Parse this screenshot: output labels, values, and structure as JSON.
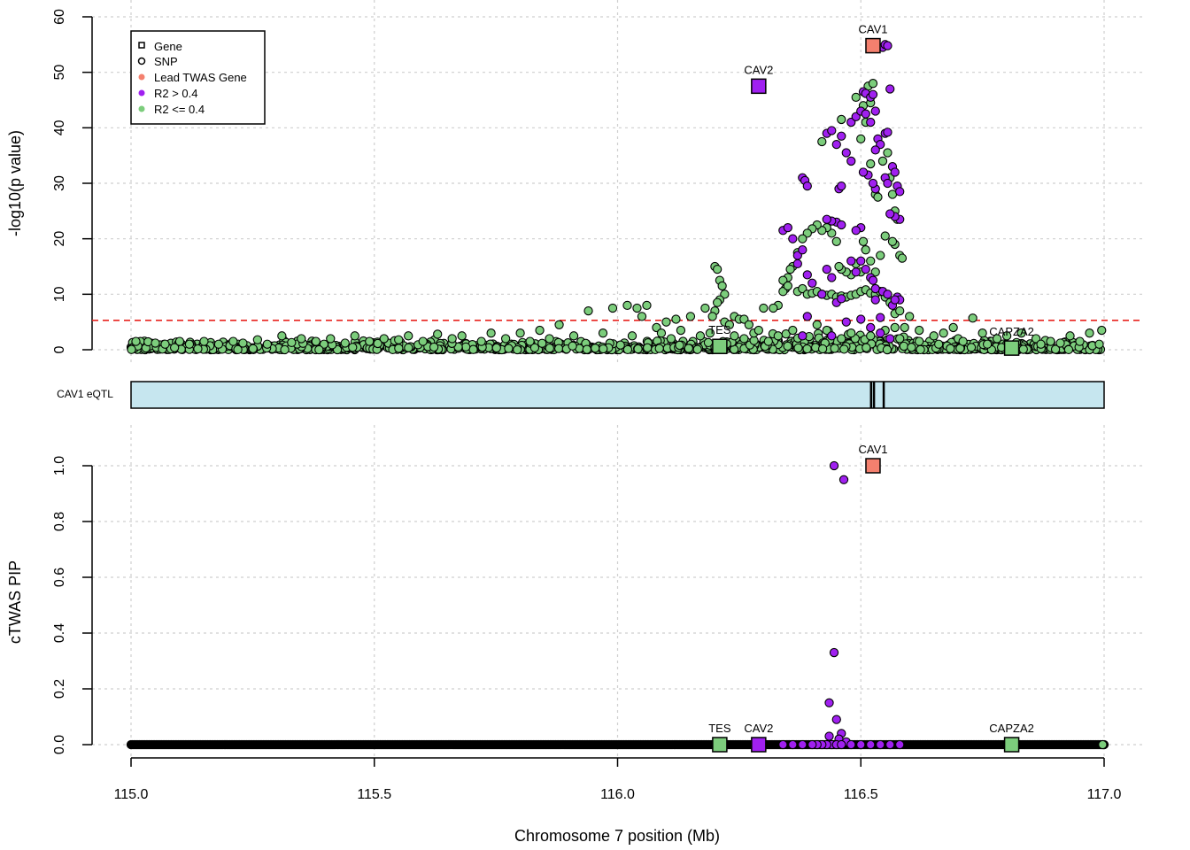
{
  "chart_data": [
    {
      "type": "scatter",
      "panel": "association",
      "ylabel": "-log10(p value)",
      "xlim": [
        115.0,
        117.0
      ],
      "ylim": [
        0,
        60
      ],
      "yticks": [
        0,
        10,
        20,
        30,
        40,
        50,
        60
      ],
      "grid": true,
      "threshold": 5.3,
      "legend_position": "top-left",
      "legend": [
        {
          "label": "Gene",
          "marker": "square-open",
          "color": "#000000"
        },
        {
          "label": "SNP",
          "marker": "circle-open",
          "color": "#000000"
        },
        {
          "label": "Lead TWAS Gene",
          "marker": "circle",
          "color": "#f4806e"
        },
        {
          "label": "R2 > 0.4",
          "marker": "circle",
          "color": "#a020f0"
        },
        {
          "label": "R2 <= 0.4",
          "marker": "circle",
          "color": "#7ccd7c"
        }
      ],
      "genes": [
        {
          "name": "CAV1",
          "x": 116.525,
          "y": 54.8,
          "class": "lead"
        },
        {
          "name": "CAV2",
          "x": 116.29,
          "y": 47.5,
          "class": "high"
        },
        {
          "name": "TES",
          "x": 116.21,
          "y": 0.6,
          "class": "low"
        },
        {
          "name": "CAPZA2",
          "x": 116.81,
          "y": 0.3,
          "class": "low"
        }
      ],
      "snps_high": [
        [
          116.34,
          21.5
        ],
        [
          116.35,
          22.0
        ],
        [
          116.36,
          20.0
        ],
        [
          116.37,
          17.0
        ],
        [
          116.37,
          15.5
        ],
        [
          116.38,
          31.0
        ],
        [
          116.385,
          30.5
        ],
        [
          116.39,
          29.5
        ],
        [
          116.38,
          18.0
        ],
        [
          116.39,
          13.5
        ],
        [
          116.4,
          12.0
        ],
        [
          116.42,
          10.0
        ],
        [
          116.43,
          14.5
        ],
        [
          116.44,
          13.0
        ],
        [
          116.45,
          23.0
        ],
        [
          116.46,
          22.5
        ],
        [
          116.44,
          23.2
        ],
        [
          116.43,
          23.5
        ],
        [
          116.43,
          39.0
        ],
        [
          116.44,
          39.5
        ],
        [
          116.45,
          37.0
        ],
        [
          116.46,
          38.5
        ],
        [
          116.47,
          35.5
        ],
        [
          116.48,
          41.0
        ],
        [
          116.49,
          42.0
        ],
        [
          116.5,
          43.0
        ],
        [
          116.505,
          46.5
        ],
        [
          116.51,
          46.2
        ],
        [
          116.52,
          45.5
        ],
        [
          116.525,
          46.0
        ],
        [
          116.51,
          42.5
        ],
        [
          116.52,
          41.0
        ],
        [
          116.53,
          43.0
        ],
        [
          116.535,
          38.0
        ],
        [
          116.54,
          37.0
        ],
        [
          116.545,
          54.5
        ],
        [
          116.55,
          55.0
        ],
        [
          116.555,
          54.8
        ],
        [
          116.56,
          47.0
        ],
        [
          116.55,
          39.0
        ],
        [
          116.555,
          39.2
        ],
        [
          116.55,
          31.0
        ],
        [
          116.555,
          30.0
        ],
        [
          116.565,
          33.0
        ],
        [
          116.57,
          32.0
        ],
        [
          116.575,
          29.5
        ],
        [
          116.58,
          28.5
        ],
        [
          116.58,
          23.5
        ],
        [
          116.57,
          24.0
        ],
        [
          116.56,
          24.5
        ],
        [
          116.53,
          29.0
        ],
        [
          116.525,
          30.0
        ],
        [
          116.515,
          31.5
        ],
        [
          116.505,
          32.0
        ],
        [
          116.5,
          22.0
        ],
        [
          116.49,
          21.5
        ],
        [
          116.48,
          16.0
        ],
        [
          116.49,
          14.0
        ],
        [
          116.5,
          16.0
        ],
        [
          116.51,
          14.5
        ],
        [
          116.52,
          13.0
        ],
        [
          116.525,
          12.5
        ],
        [
          116.53,
          11.0
        ],
        [
          116.545,
          10.5
        ],
        [
          116.555,
          10.0
        ],
        [
          116.565,
          8.0
        ],
        [
          116.575,
          9.5
        ],
        [
          116.58,
          9.0
        ],
        [
          116.54,
          3.0
        ],
        [
          116.56,
          2.0
        ],
        [
          116.44,
          2.5
        ],
        [
          116.38,
          2.5
        ],
        [
          116.45,
          8.5
        ],
        [
          116.47,
          5.0
        ],
        [
          116.5,
          5.5
        ],
        [
          116.52,
          4.0
        ],
        [
          116.455,
          29.0
        ],
        [
          116.46,
          29.5
        ],
        [
          116.48,
          34.0
        ],
        [
          116.53,
          36.0
        ],
        [
          116.54,
          5.8
        ],
        [
          116.57,
          9.0
        ],
        [
          116.53,
          9.0
        ],
        [
          116.46,
          9.2
        ],
        [
          116.39,
          6.0
        ]
      ],
      "snps_low": [
        [
          116.42,
          37.5
        ],
        [
          116.46,
          41.5
        ],
        [
          116.49,
          45.5
        ],
        [
          116.5,
          38.0
        ],
        [
          116.505,
          44.0
        ],
        [
          116.515,
          47.5
        ],
        [
          116.525,
          48.0
        ],
        [
          116.52,
          44.5
        ],
        [
          116.51,
          41.0
        ],
        [
          116.52,
          33.5
        ],
        [
          116.53,
          28.0
        ],
        [
          116.535,
          27.5
        ],
        [
          116.545,
          34.0
        ],
        [
          116.555,
          35.5
        ],
        [
          116.56,
          31.0
        ],
        [
          116.565,
          28.0
        ],
        [
          116.57,
          25.0
        ],
        [
          116.575,
          23.5
        ],
        [
          116.58,
          17.0
        ],
        [
          116.585,
          16.5
        ],
        [
          116.57,
          19.0
        ],
        [
          116.565,
          19.5
        ],
        [
          116.55,
          20.5
        ],
        [
          116.54,
          17.0
        ],
        [
          116.53,
          14.0
        ],
        [
          116.52,
          16.0
        ],
        [
          116.51,
          18.0
        ],
        [
          116.505,
          19.5
        ],
        [
          116.5,
          14.0
        ],
        [
          116.49,
          15.5
        ],
        [
          116.48,
          13.5
        ],
        [
          116.47,
          14.0
        ],
        [
          116.46,
          14.5
        ],
        [
          116.455,
          15.0
        ],
        [
          116.45,
          19.5
        ],
        [
          116.44,
          21.0
        ],
        [
          116.43,
          22.0
        ],
        [
          116.42,
          21.5
        ],
        [
          116.41,
          22.5
        ],
        [
          116.4,
          21.8
        ],
        [
          116.39,
          21.0
        ],
        [
          116.38,
          20.0
        ],
        [
          116.37,
          17.5
        ],
        [
          116.36,
          15.0
        ],
        [
          116.355,
          14.5
        ],
        [
          116.35,
          13.0
        ],
        [
          116.345,
          11.0
        ],
        [
          116.34,
          10.5
        ],
        [
          116.33,
          8.0
        ],
        [
          116.32,
          7.5
        ],
        [
          116.34,
          12.5
        ],
        [
          116.35,
          11.5
        ],
        [
          116.37,
          10.5
        ],
        [
          116.38,
          11.0
        ],
        [
          116.39,
          10.0
        ],
        [
          116.4,
          10.2
        ],
        [
          116.41,
          10.5
        ],
        [
          116.42,
          10.0
        ],
        [
          116.43,
          9.8
        ],
        [
          116.44,
          10.0
        ],
        [
          116.45,
          9.5
        ],
        [
          116.46,
          9.7
        ],
        [
          116.47,
          9.5
        ],
        [
          116.48,
          9.8
        ],
        [
          116.49,
          10.0
        ],
        [
          116.5,
          10.5
        ],
        [
          116.51,
          10.8
        ],
        [
          116.52,
          10.2
        ],
        [
          116.53,
          10.0
        ],
        [
          116.54,
          10.5
        ],
        [
          116.55,
          9.5
        ],
        [
          116.56,
          8.5
        ],
        [
          116.57,
          6.5
        ],
        [
          116.58,
          7.0
        ],
        [
          116.59,
          4.0
        ],
        [
          116.6,
          6.0
        ],
        [
          116.62,
          3.5
        ],
        [
          116.65,
          2.5
        ],
        [
          116.67,
          3.0
        ],
        [
          116.69,
          4.0
        ],
        [
          116.7,
          2.0
        ],
        [
          116.73,
          5.7
        ],
        [
          116.75,
          3.0
        ],
        [
          116.78,
          2.0
        ],
        [
          116.8,
          2.5
        ],
        [
          116.83,
          3.0
        ],
        [
          116.86,
          2.0
        ],
        [
          116.89,
          1.5
        ],
        [
          116.93,
          2.5
        ],
        [
          116.97,
          3.0
        ],
        [
          116.995,
          3.5
        ],
        [
          116.2,
          15.0
        ],
        [
          116.205,
          14.5
        ],
        [
          116.21,
          12.5
        ],
        [
          116.215,
          11.5
        ],
        [
          116.22,
          10.0
        ],
        [
          116.21,
          9.0
        ],
        [
          116.205,
          8.5
        ],
        [
          116.2,
          7.0
        ],
        [
          116.195,
          6.0
        ],
        [
          116.22,
          5.0
        ],
        [
          116.23,
          4.5
        ],
        [
          116.24,
          6.0
        ],
        [
          116.25,
          5.5
        ],
        [
          116.26,
          5.5
        ],
        [
          116.27,
          4.5
        ],
        [
          116.28,
          3.0
        ],
        [
          116.3,
          7.5
        ],
        [
          116.18,
          7.5
        ],
        [
          116.15,
          6.0
        ],
        [
          116.12,
          5.5
        ],
        [
          116.1,
          5.0
        ],
        [
          116.08,
          4.0
        ],
        [
          116.06,
          8.0
        ],
        [
          116.05,
          6.0
        ],
        [
          116.04,
          7.5
        ],
        [
          116.02,
          8.0
        ],
        [
          115.99,
          7.5
        ],
        [
          115.94,
          7.0
        ],
        [
          115.88,
          4.5
        ],
        [
          115.84,
          3.5
        ],
        [
          115.8,
          3.0
        ],
        [
          115.74,
          3.0
        ],
        [
          115.68,
          2.5
        ],
        [
          115.63,
          2.8
        ],
        [
          115.57,
          2.5
        ],
        [
          115.52,
          2.0
        ],
        [
          115.46,
          2.5
        ],
        [
          115.41,
          2.0
        ],
        [
          115.35,
          2.0
        ],
        [
          115.31,
          2.5
        ],
        [
          115.26,
          1.8
        ],
        [
          115.21,
          1.5
        ],
        [
          115.15,
          1.5
        ],
        [
          115.1,
          1.5
        ],
        [
          115.05,
          1.2
        ],
        [
          115.01,
          1.5
        ],
        [
          116.33,
          2.5
        ],
        [
          116.36,
          3.5
        ],
        [
          116.41,
          4.5
        ],
        [
          116.43,
          3.5
        ],
        [
          116.46,
          2.0
        ],
        [
          116.48,
          3.0
        ],
        [
          116.52,
          2.5
        ],
        [
          116.55,
          3.5
        ],
        [
          116.57,
          4.0
        ],
        [
          116.58,
          2.0
        ],
        [
          116.31,
          1.5
        ],
        [
          116.29,
          3.5
        ],
        [
          116.26,
          2.0
        ],
        [
          116.24,
          2.5
        ],
        [
          116.19,
          3.0
        ],
        [
          116.17,
          2.5
        ],
        [
          116.13,
          3.5
        ],
        [
          116.11,
          2.0
        ],
        [
          116.09,
          3.0
        ],
        [
          116.03,
          2.5
        ],
        [
          115.97,
          3.0
        ],
        [
          115.91,
          2.5
        ],
        [
          115.86,
          2.0
        ],
        [
          115.82,
          1.5
        ],
        [
          115.77,
          2.0
        ],
        [
          115.72,
          1.5
        ],
        [
          115.66,
          2.0
        ],
        [
          115.6,
          1.5
        ],
        [
          115.55,
          1.8
        ],
        [
          115.49,
          1.5
        ],
        [
          115.44,
          1.2
        ],
        [
          115.38,
          1.5
        ],
        [
          115.33,
          1.3
        ],
        [
          115.28,
          1.0
        ],
        [
          115.23,
          1.2
        ],
        [
          115.18,
          1.0
        ],
        [
          115.12,
          1.0
        ],
        [
          115.07,
          1.0
        ],
        [
          116.62,
          1.5
        ],
        [
          116.66,
          1.0
        ],
        [
          116.71,
          1.5
        ],
        [
          116.76,
          1.0
        ],
        [
          116.82,
          1.3
        ],
        [
          116.87,
          1.0
        ],
        [
          116.91,
          1.2
        ],
        [
          116.95,
          1.5
        ],
        [
          116.99,
          1.0
        ]
      ]
    },
    {
      "type": "scatter",
      "panel": "eqtl_track",
      "label": "CAV1 eQTL",
      "xlim": [
        115.0,
        117.0
      ],
      "marks_x": [
        116.521,
        116.527,
        116.547
      ],
      "color": "#c6e6ef"
    },
    {
      "type": "scatter",
      "panel": "pip",
      "ylabel": "cTWAS PIP",
      "xlabel": "Chromosome 7 position (Mb)",
      "xlim": [
        115.0,
        117.0
      ],
      "ylim": [
        0,
        1
      ],
      "xticks": [
        "115.0",
        "115.5",
        "116.0",
        "116.5",
        "117.0"
      ],
      "yticks": [
        "0.0",
        "0.2",
        "0.4",
        "0.6",
        "0.8",
        "1.0"
      ],
      "grid": true,
      "genes": [
        {
          "name": "CAV1",
          "x": 116.525,
          "y": 1.0,
          "class": "lead"
        },
        {
          "name": "CAV2",
          "x": 116.29,
          "y": 0.0,
          "class": "high"
        },
        {
          "name": "TES",
          "x": 116.21,
          "y": 0.0,
          "class": "low"
        },
        {
          "name": "CAPZA2",
          "x": 116.81,
          "y": 0.0,
          "class": "low"
        }
      ],
      "snps_high": [
        [
          116.445,
          1.0
        ],
        [
          116.465,
          0.95
        ],
        [
          116.445,
          0.33
        ],
        [
          116.435,
          0.15
        ],
        [
          116.45,
          0.09
        ],
        [
          116.46,
          0.04
        ],
        [
          116.435,
          0.03
        ],
        [
          116.455,
          0.02
        ],
        [
          116.47,
          0.01
        ],
        [
          116.44,
          0.0
        ],
        [
          116.45,
          0.0
        ],
        [
          116.46,
          0.0
        ],
        [
          116.43,
          0.0
        ],
        [
          116.42,
          0.0
        ],
        [
          116.41,
          0.0
        ],
        [
          116.4,
          0.0
        ],
        [
          116.38,
          0.0
        ],
        [
          116.36,
          0.0
        ],
        [
          116.48,
          0.0
        ],
        [
          116.5,
          0.0
        ],
        [
          116.52,
          0.0
        ],
        [
          116.54,
          0.0
        ],
        [
          116.56,
          0.0
        ],
        [
          116.58,
          0.0
        ],
        [
          116.34,
          0.0
        ]
      ],
      "snps_low_end": [
        116.997,
        0.0
      ]
    }
  ]
}
